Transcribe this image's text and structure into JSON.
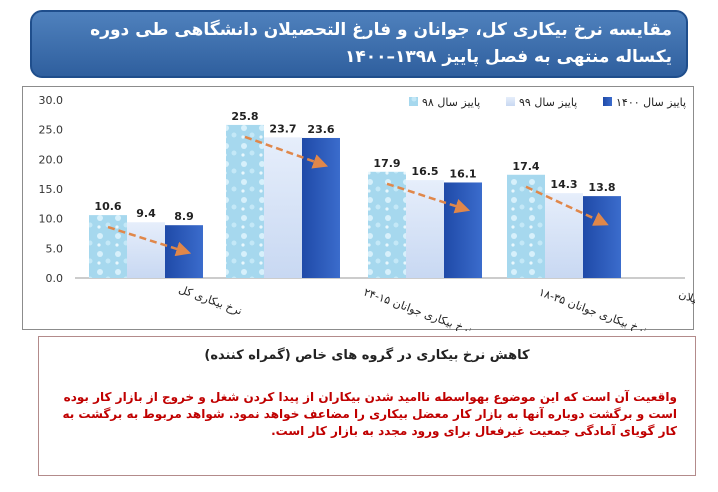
{
  "title": {
    "line1": "مقایسه نرخ بیکاری کل، جوانان و فارغ التحصیلان دانشگاهی طی دوره",
    "line2": "یکساله منتهی به فصل پاییز ۱۳۹۸–۱۴۰۰"
  },
  "chart_data": {
    "type": "bar",
    "categories": [
      "نرخ بیکاری کل",
      "نرخ بیکاری جوانان ۱۵-۲۴",
      "نرخ بیکاری جوانان ۳۵-۱۸",
      "نرخ بیکاری فارغ التحصیلان"
    ],
    "series": [
      {
        "name": "پاییز سال ۹۸",
        "values": [
          10.6,
          25.8,
          17.9,
          17.4
        ]
      },
      {
        "name": "پاییز سال ۹۹",
        "values": [
          9.4,
          23.7,
          16.5,
          14.3
        ]
      },
      {
        "name": "پاییز سال ۱۴۰۰",
        "values": [
          8.9,
          23.6,
          16.1,
          13.8
        ]
      }
    ],
    "ylim": [
      0,
      30
    ],
    "yticks": [
      "0.0",
      "5.0",
      "10.0",
      "15.0",
      "20.0",
      "25.0",
      "30.0"
    ],
    "legend_position": "top-right",
    "grid": false,
    "trend_arrows": true,
    "colors": {
      "s98": "#9fd3ea",
      "s99": "#dbe6f7",
      "s1400": "#2a57b8",
      "arrow": "#e0874a"
    }
  },
  "note": {
    "heading": "کاهش نرخ بیکاری در گروه های خاص (گمراه کننده)",
    "body": "واقعیت آن است که این موضوع بهواسطه ناامید شدن بیکاران از پیدا کردن شغل و خروج از بازار کار بوده است و برگشت دوباره آنها به بازار کار معضل بیکاری را مضاعف خواهد نمود. شواهد مربوط به برگشت به کار گویای آمادگی جمعیت غیرفعال برای ورود مجدد به بازار کار است."
  }
}
